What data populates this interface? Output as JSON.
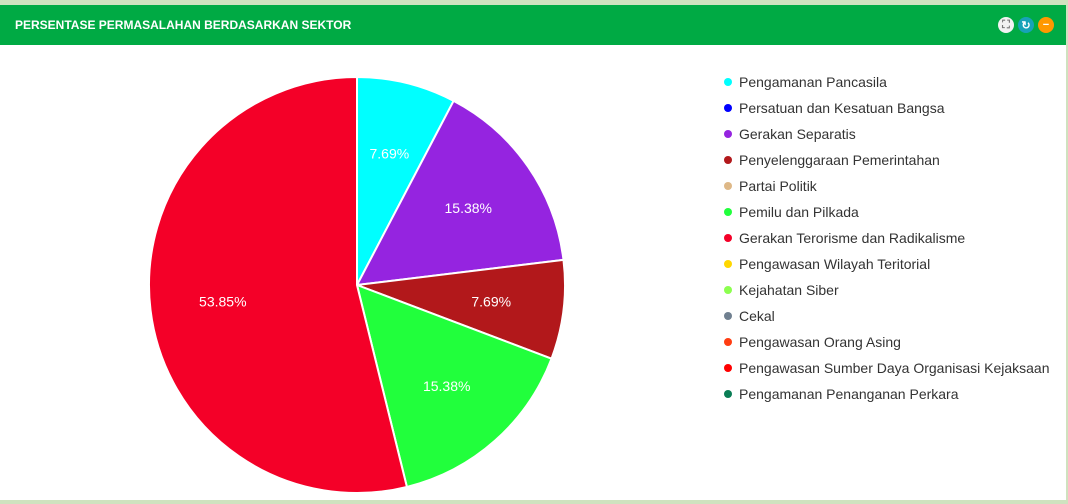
{
  "panel": {
    "title": "PERSENTASE PERMASALAHAN BERDASARKAN SEKTOR",
    "tools": [
      {
        "icon": "expand-icon",
        "color": "#f2f2f2",
        "glyph": "⛶"
      },
      {
        "icon": "refresh-icon",
        "color": "#17a2b8",
        "glyph": "↻"
      },
      {
        "icon": "minimize-icon",
        "color": "#ff9800",
        "glyph": "−"
      }
    ]
  },
  "chart_data": {
    "type": "pie",
    "title": "PERSENTASE PERMASALAHAN BERDASARKAN SEKTOR",
    "legend_position": "right",
    "categories": [
      "Pengamanan Pancasila",
      "Persatuan dan Kesatuan Bangsa",
      "Gerakan Separatis",
      "Penyelenggaraan Pemerintahan",
      "Partai Politik",
      "Pemilu dan Pilkada",
      "Gerakan Terorisme dan Radikalisme",
      "Pengawasan Wilayah Teritorial",
      "Kejahatan Siber",
      "Cekal",
      "Pengawasan Orang Asing",
      "Pengawasan Sumber Daya Organisasi Kejaksaan",
      "Pengamanan Penanganan Perkara"
    ],
    "values": [
      7.69,
      0,
      15.38,
      7.69,
      0,
      15.38,
      53.85,
      0,
      0,
      0,
      0,
      0,
      0
    ],
    "labels": [
      "7.69%",
      "",
      "15.38%",
      "7.69%",
      "",
      "15.38%",
      "53.85%",
      "",
      "",
      "",
      "",
      "",
      ""
    ],
    "colors": [
      "#00ffff",
      "#0000ff",
      "#9524e0",
      "#b2181b",
      "#deb887",
      "#21ff3c",
      "#f40028",
      "#ffd700",
      "#8cff4f",
      "#708090",
      "#ff3d12",
      "#ff0000",
      "#0a7d55"
    ]
  }
}
